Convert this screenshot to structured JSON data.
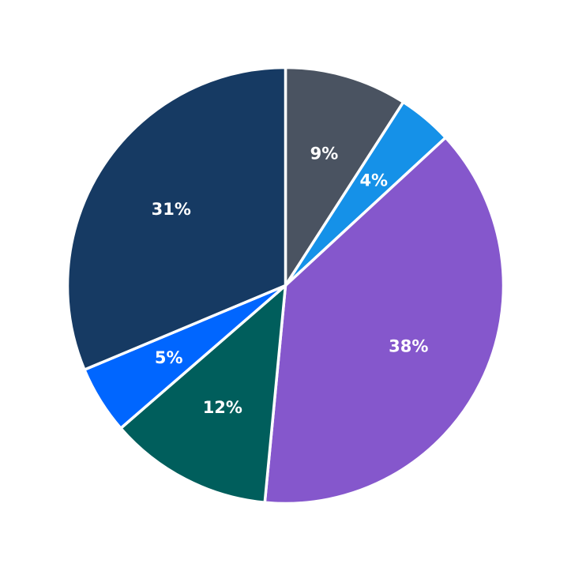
{
  "chart_data": {
    "type": "pie",
    "title": "",
    "start_angle": "top, clockwise",
    "slices": [
      {
        "label": "9%",
        "value": 9,
        "color": "#4a5361"
      },
      {
        "label": "4%",
        "value": 4,
        "color": "#1591e8"
      },
      {
        "label": "38%",
        "value": 38,
        "color": "#8557cc"
      },
      {
        "label": "12%",
        "value": 12,
        "color": "#005e5c"
      },
      {
        "label": "5%",
        "value": 5,
        "color": "#0066ff"
      },
      {
        "label": "31%",
        "value": 31,
        "color": "#163a63"
      }
    ],
    "slice_separator_color": "#ffffff",
    "label_color": "#ffffff"
  }
}
